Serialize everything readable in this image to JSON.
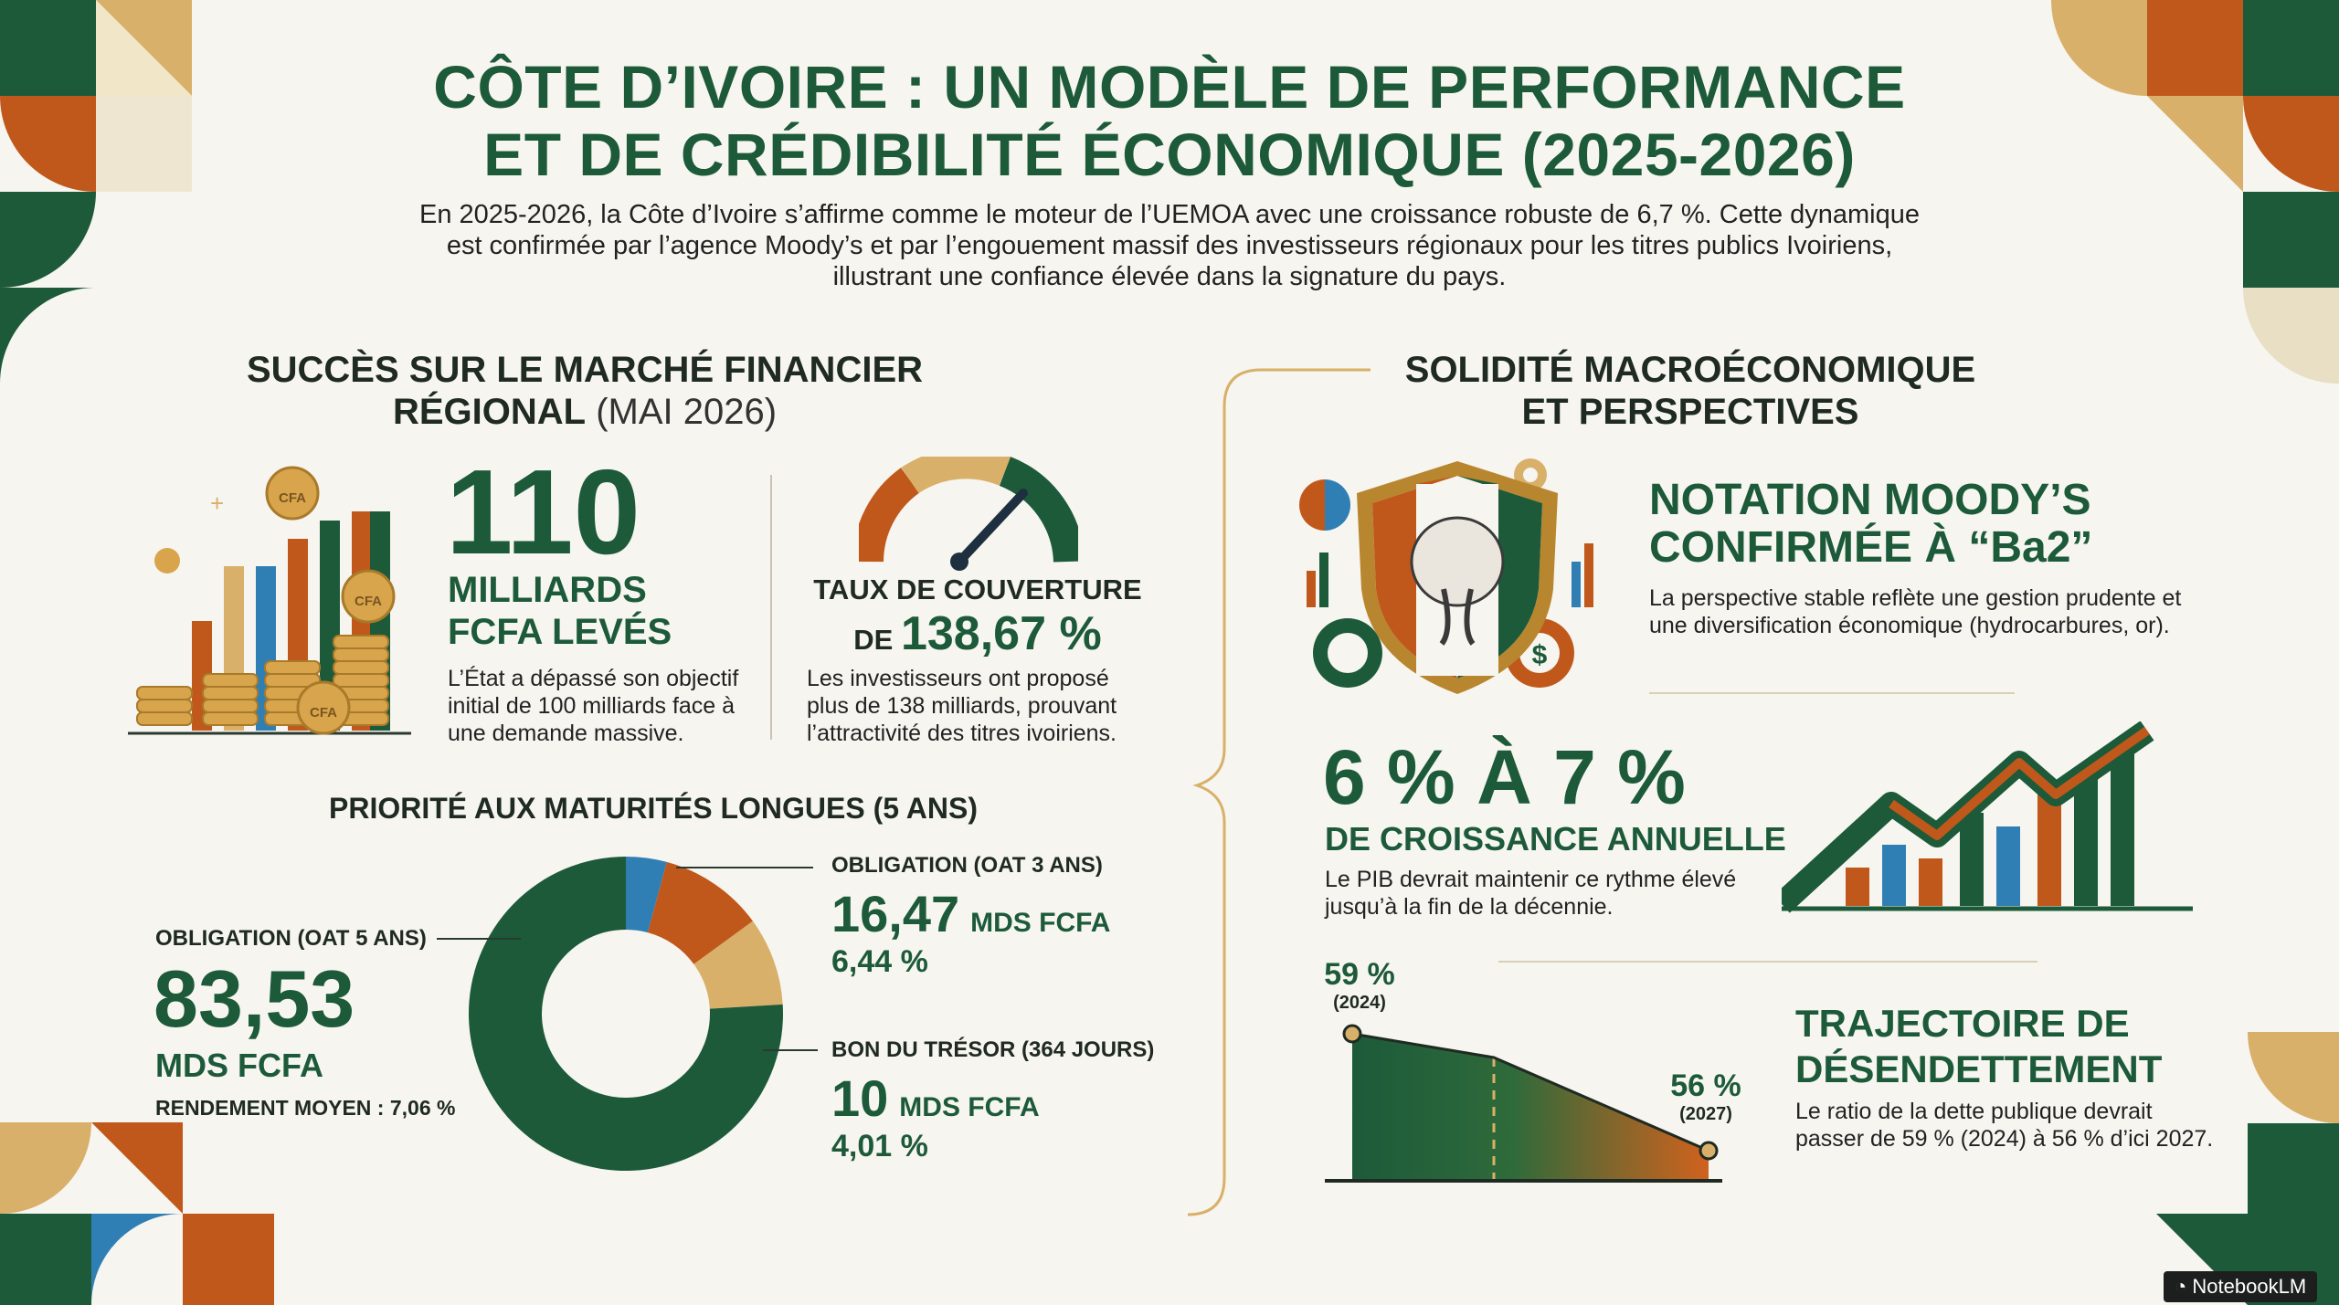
{
  "header": {
    "title_line1": "CÔTE D’IVOIRE : UN MODÈLE DE PERFORMANCE",
    "title_line2": "ET DE CRÉDIBILITÉ ÉCONOMIQUE (2025-2026)",
    "intro_line1": "En 2025-2026, la Côte d’Ivoire s’affirme comme le moteur de l’UEMOA avec une croissance robuste de 6,7 %. Cette dynamique",
    "intro_line2": "est confirmée par l’agence Moody’s et par l’engouement massif des investisseurs régionaux pour les titres publics Ivoiriens,",
    "intro_line3": "illustrant une confiance élevée dans la signature du pays."
  },
  "left_section": {
    "heading_line1": "SUCCÈS SUR LE MARCHÉ FINANCIER",
    "heading_line2_bold": "RÉGIONAL",
    "heading_line2_light": " (MAI 2026)",
    "coin_label": "CFA",
    "raised": {
      "value": "110",
      "label_line1": "MILLIARDS",
      "label_line2": "FCFA LEVÉS",
      "desc_line1": "L’État a dépassé son objectif",
      "desc_line2": "initial de 100 milliards face à",
      "desc_line3": "une demande massive."
    },
    "coverage": {
      "label_line1": "TAUX DE COUVERTURE",
      "label_prefix": "DE ",
      "value": "138,67 %",
      "desc_line1": "Les investisseurs ont proposé",
      "desc_line2": "plus de 138 milliards, prouvant",
      "desc_line3": "l’attractivité des titres ivoiriens."
    },
    "maturity_heading": "PRIORITÉ AUX MATURITÉS LONGUES (5 ANS)",
    "oat5": {
      "label": "OBLIGATION (OAT 5 ANS)",
      "value": "83,53",
      "unit": "MDS FCFA",
      "yield": "RENDEMENT MOYEN : 7,06 %"
    },
    "oat3": {
      "label": "OBLIGATION (OAT 3 ANS)",
      "value": "16,47",
      "unit": "MDS FCFA",
      "rate": "6,44 %"
    },
    "bond364": {
      "label": "BON DU TRÉSOR (364 JOURS)",
      "value": "10",
      "unit": "MDS FCFA",
      "rate": "4,01 %"
    }
  },
  "right_section": {
    "heading_line1": "SOLIDITÉ MACROÉCONOMIQUE",
    "heading_line2": "ET PERSPECTIVES",
    "rating": {
      "title_line1": "NOTATION MOODY’S",
      "title_line2": "CONFIRMÉE À “Ba2”",
      "desc_line1": "La perspective stable reflète une gestion prudente et",
      "desc_line2": "une diversification économique (hydrocarbures, or)."
    },
    "growth": {
      "value": "6 % À 7 %",
      "label": "DE CROISSANCE ANNUELLE",
      "desc_line1": "Le PIB devrait maintenir ce rythme élevé",
      "desc_line2": "jusqu’à la fin de la décennie."
    },
    "debt": {
      "start_value": "59 %",
      "start_year": "(2024)",
      "end_value": "56 %",
      "end_year": "(2027)",
      "title_line1": "TRAJECTOIRE DE",
      "title_line2": "DÉSENDETTEMENT",
      "desc_line1": "Le ratio de la dette publique devrait",
      "desc_line2": "passer de 59 % (2024) à 56 % d’ici 2027."
    }
  },
  "footer": {
    "brand": "NotebookLM"
  },
  "chart_data": {
    "type": "pie",
    "categories": [
      "OBLIGATION (OAT 5 ANS)",
      "OBLIGATION (OAT 3 ANS)",
      "BON DU TRÉSOR (364 JOURS)"
    ],
    "values": [
      83.53,
      16.47,
      10
    ],
    "colors": [
      "#1c5a3a",
      "#c0581c",
      "#d8b06a"
    ]
  },
  "colors": {
    "green": "#1c5a3a",
    "orange": "#c0581c",
    "gold": "#d8b06a",
    "blue": "#2f7fb5",
    "background": "#f7f5ef"
  }
}
